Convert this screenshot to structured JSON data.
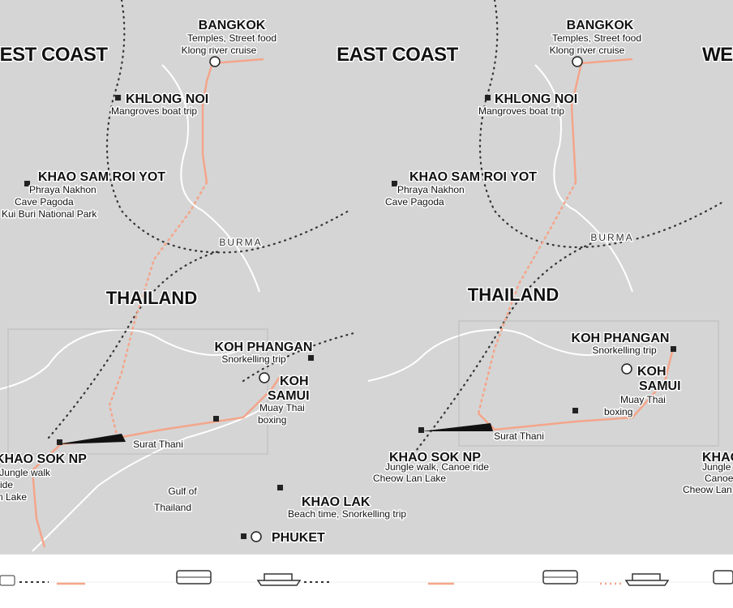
{
  "panels": [
    {
      "title": "WEST COAST",
      "places": [
        {
          "name": [
            "BANGKOK"
          ],
          "notes": [
            "Temples, Street food",
            "Klong river cruise"
          ]
        },
        {
          "name": [
            "KHLONG NOI"
          ],
          "notes": [
            "Mangroves boat trip"
          ]
        },
        {
          "name": [
            "KHAO SAM ROI YOT"
          ],
          "notes": [
            "Phraya Nakhon",
            "Cave Pagoda",
            "Kui Buri National Park"
          ]
        },
        {
          "name": [
            "KOH PHANGAN"
          ],
          "notes": [
            "Snorkelling trip"
          ]
        },
        {
          "name": [
            "KOH",
            "SAMUI"
          ],
          "notes": [
            "Muay Thai",
            "boxing"
          ]
        },
        {
          "name": [
            "KHAO SOK NP"
          ],
          "notes": [
            "Jungle walk",
            "Canoe ride",
            "Cheow Lan Lake"
          ]
        },
        {
          "name": [
            "KHAO LAK"
          ],
          "notes": [
            "Beach time, Snorkelling trip"
          ]
        },
        {
          "name": [
            "PHUKET"
          ],
          "notes": []
        }
      ],
      "towns": [
        "Surat Thani"
      ],
      "areas": [
        "BURMA",
        "THAILAND",
        "Gulf of",
        "Thailand"
      ]
    },
    {
      "title": "EAST COAST",
      "places": [
        {
          "name": [
            "BANGKOK"
          ],
          "notes": [
            "Temples, Street food",
            "Klong river cruise"
          ]
        },
        {
          "name": [
            "KHLONG NOI"
          ],
          "notes": [
            "Mangroves boat trip"
          ]
        },
        {
          "name": [
            "KHAO SAM ROI YOT"
          ],
          "notes": [
            "Phraya Nakhon",
            "Cave Pagoda"
          ]
        },
        {
          "name": [
            "KOH PHANGAN"
          ],
          "notes": [
            "Snorkelling trip"
          ]
        },
        {
          "name": [
            "KOH",
            "SAMUI"
          ],
          "notes": [
            "Muay Thai",
            "boxing"
          ]
        },
        {
          "name": [
            "KHAO SOK NP"
          ],
          "notes": [
            "Jungle walk, Canoe ride",
            "Cheow Lan Lake"
          ]
        }
      ],
      "towns": [
        "Surat Thani"
      ],
      "areas": [
        "BURMA",
        "THAILAND"
      ]
    },
    {
      "title": "WEST COAST",
      "places": [
        {
          "name": [
            "KHAO SOK NP"
          ],
          "notes": [
            "Jungle walk",
            "Canoe ride",
            "Cheow Lan Lake"
          ]
        }
      ]
    }
  ]
}
